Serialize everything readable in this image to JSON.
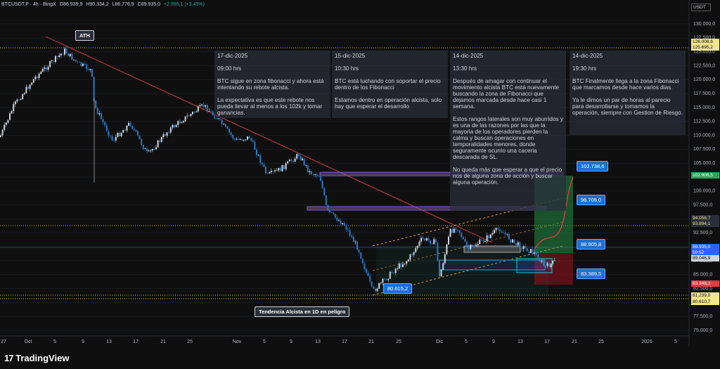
{
  "header": {
    "symbol": "BTCUSDT.P · 4h · BingX",
    "open": "O86.939,9",
    "high": "H90.334,2",
    "low": "L86.776,9",
    "close": "C89.935,0",
    "change": "+2.995,1 (+3,45%)"
  },
  "currency": "USDT",
  "price_axis": [
    "130.000,0",
    "127.500,0",
    "125.000,0",
    "122.500,0",
    "120.000,0",
    "117.500,0",
    "115.000,0",
    "112.500,0",
    "110.000,0",
    "107.500,0",
    "105.000,0",
    "102.500,0",
    "100.000,0",
    "97.500,0",
    "95.000,0",
    "92.500,0",
    "90.000,0",
    "87.500,0",
    "85.000,0",
    "82.500,0",
    "80.000,0",
    "77.500,0",
    "75.000,0"
  ],
  "price_tags": [
    {
      "label": "126.008,6"
    },
    {
      "label": "125.695,2"
    },
    {
      "label": "102.906,5"
    },
    {
      "label": "94.058,7"
    },
    {
      "label": "93.894,1"
    },
    {
      "label": "89.935,0"
    },
    {
      "label": "50:52"
    },
    {
      "label": "89.046,9"
    },
    {
      "label": "83.348,3"
    },
    {
      "label": "81.239,0"
    },
    {
      "label": "80.610,7"
    }
  ],
  "date_axis": [
    "27",
    "Oct",
    "5",
    "9",
    "13",
    "17",
    "21",
    "25",
    "Nov",
    "5",
    "9",
    "13",
    "17",
    "21",
    "25",
    "Dic",
    "5",
    "9",
    "13",
    "17",
    "21",
    "25",
    "2026",
    "5"
  ],
  "annotations": {
    "ath": "ATH",
    "trend": "Tendencia Alcista en 1D en peligro",
    "low": "80.615,2",
    "target": "102.738,6",
    "tp1": "96.705,0",
    "entry": "88.905,8",
    "stop": "83.389,5"
  },
  "notes": [
    {
      "date": "17-dic-2025",
      "time": "09:00 hrs",
      "paragraphs": [
        "BTC sigue en zona fibonacci y ahora está intentando su rebote alcista.",
        "La expectativa es que este rebote nos pueda llevar al menos a los 102k y tomar ganancias."
      ]
    },
    {
      "date": "15-dic-2025",
      "time": "10:30 hrs",
      "paragraphs": [
        "BTC está luchando con soportar el precio dentro de los Fibonacci",
        "Estamos dentro en operación alcista, solo hay que esperar el desarrollo"
      ]
    },
    {
      "date": "14-dic-2025",
      "time": "13:30 hrs",
      "paragraphs": [
        "Después de amagar con continuar el movimiento alcista BTC está nuevamente buscando la zona de Fibonacci que dejamos marcada desde hace casi 1 semana.",
        "Estos rangos laterales son muy aburridos y es una de las razones por las que la mayoria de los operadores pierden la calma y buscan operaciones en temporalidades menores, donde seguramente ocurrio una caceria descarada de SL.",
        "No queda más que esperar a que el precio nos de alguna zona de acción y buscar alguna operación."
      ]
    },
    {
      "date": "14-dic-2025",
      "time": "19:30 hrs",
      "paragraphs": [
        "BTC Finalmente llega a la zona Fibonacci que  marcamos desde hace varios dias.",
        "Ya le dimos un par de horas al parecio para desarrollarse y tomamos la operación, siempre con Gestion de Riesgo."
      ]
    }
  ],
  "footer": {
    "brand": "TradingView"
  }
}
